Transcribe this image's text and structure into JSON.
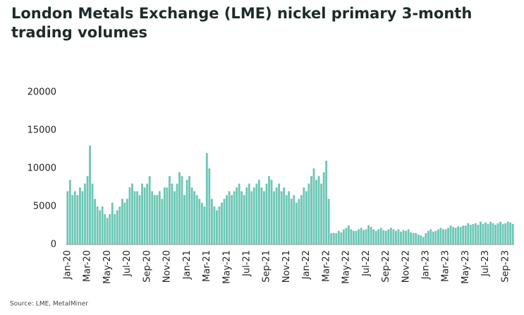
{
  "chart_data": {
    "type": "bar",
    "title": [
      "London Metals Exchange (LME) nickel primary 3-month",
      "trading volumes"
    ],
    "source": "Source: LME, MetalMiner",
    "color": "#6cc7b5",
    "ylim": [
      0,
      25000
    ],
    "yticks": [
      0,
      5000,
      10000,
      15000,
      20000
    ],
    "grid": false,
    "categories": [
      "Jan-20",
      null,
      null,
      null,
      null,
      null,
      null,
      null,
      "Mar-20",
      null,
      null,
      null,
      null,
      null,
      null,
      null,
      "May-20",
      null,
      null,
      null,
      null,
      null,
      null,
      null,
      "Jul-20",
      null,
      null,
      null,
      null,
      null,
      null,
      null,
      "Sep-20",
      null,
      null,
      null,
      null,
      null,
      null,
      null,
      "Nov-20",
      null,
      null,
      null,
      null,
      null,
      null,
      null,
      "Jan-21",
      null,
      null,
      null,
      null,
      null,
      null,
      null,
      "Mar-21",
      null,
      null,
      null,
      null,
      null,
      null,
      null,
      "May-21",
      null,
      null,
      null,
      null,
      null,
      null,
      null,
      "Jul-21",
      null,
      null,
      null,
      null,
      null,
      null,
      null,
      "Sep-21",
      null,
      null,
      null,
      null,
      null,
      null,
      null,
      "Nov-21",
      null,
      null,
      null,
      null,
      null,
      null,
      null,
      "Jan-22",
      null,
      null,
      null,
      null,
      null,
      null,
      null,
      "Mar-22",
      null,
      null,
      null,
      null,
      null,
      null,
      null,
      "May-22",
      null,
      null,
      null,
      null,
      null,
      null,
      null,
      "Jul-22",
      null,
      null,
      null,
      null,
      null,
      null,
      null,
      "Sep-22",
      null,
      null,
      null,
      null,
      null,
      null,
      null,
      "Nov-22",
      null,
      null,
      null,
      null,
      null,
      null,
      null,
      "Jan-23",
      null,
      null,
      null,
      null,
      null,
      null,
      null,
      "Mar-23",
      null,
      null,
      null,
      null,
      null,
      null,
      null,
      "May-23",
      null,
      null,
      null,
      null,
      null,
      null,
      null,
      "Jul-23",
      null,
      null,
      null,
      null,
      null,
      null,
      null,
      "Sep-23",
      null,
      null,
      null
    ],
    "values": [
      7000,
      8500,
      6500,
      7000,
      6500,
      7500,
      7000,
      8000,
      9000,
      13000,
      8000,
      6000,
      5000,
      4500,
      5000,
      4000,
      3500,
      4000,
      5500,
      4000,
      4500,
      5000,
      6000,
      5500,
      6000,
      7500,
      8000,
      7000,
      7000,
      6500,
      8000,
      7500,
      8000,
      9000,
      7000,
      6500,
      6500,
      7000,
      6000,
      7500,
      7500,
      9000,
      8000,
      7000,
      8000,
      9500,
      9000,
      6500,
      8500,
      9000,
      7500,
      7000,
      6500,
      6000,
      5500,
      5000,
      12000,
      10000,
      6000,
      5000,
      4500,
      5000,
      5500,
      6000,
      6500,
      7000,
      6500,
      7000,
      7500,
      8000,
      7000,
      6500,
      7500,
      8000,
      7000,
      7500,
      8000,
      8500,
      7500,
      7000,
      8000,
      9000,
      8500,
      7000,
      7500,
      8000,
      7000,
      7500,
      6500,
      7000,
      6000,
      6500,
      5500,
      6000,
      6500,
      7500,
      7000,
      8000,
      9000,
      10000,
      8500,
      9000,
      8000,
      9500,
      11000,
      6000,
      1500,
      1500,
      1500,
      1800,
      1600,
      2000,
      2200,
      2500,
      2000,
      1800,
      1800,
      2000,
      2200,
      1900,
      2000,
      2500,
      2300,
      2000,
      1800,
      2000,
      2200,
      1900,
      1800,
      2000,
      2200,
      2000,
      1800,
      2000,
      1700,
      1900,
      1800,
      2000,
      1600,
      1500,
      1500,
      1300,
      1200,
      1000,
      1500,
      1800,
      2000,
      1700,
      1800,
      2000,
      2200,
      2000,
      2000,
      2200,
      2500,
      2300,
      2200,
      2400,
      2300,
      2500,
      2500,
      2800,
      2600,
      2700,
      2800,
      2600,
      3000,
      2700,
      2900,
      2700,
      3000,
      2800,
      2600,
      2800,
      3000,
      2700,
      2800,
      3000,
      2900,
      2700
    ]
  }
}
